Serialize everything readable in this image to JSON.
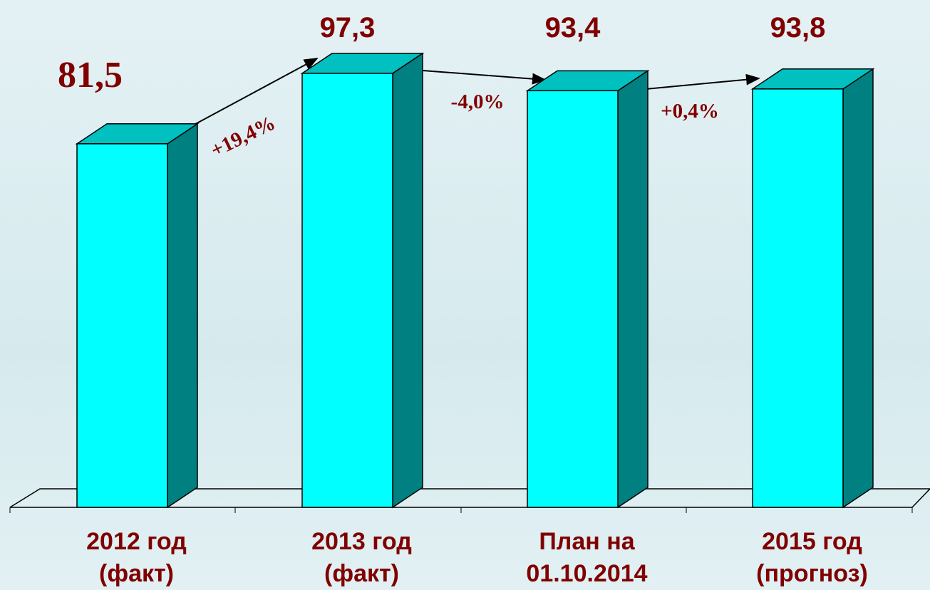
{
  "chart_data": {
    "type": "bar3d",
    "categories": [
      "2012 год\n(факт)",
      "2013 год\n(факт)",
      "План на\n01.10.2014",
      "2015 год\n(прогноз)"
    ],
    "values": [
      81.5,
      97.3,
      93.4,
      93.8
    ],
    "value_labels": [
      "81,5",
      "97,3",
      "93,4",
      "93,8"
    ],
    "annotations": [
      "+19,4%",
      "-4,0%",
      "+0,4%"
    ],
    "color": "#00ffff"
  }
}
